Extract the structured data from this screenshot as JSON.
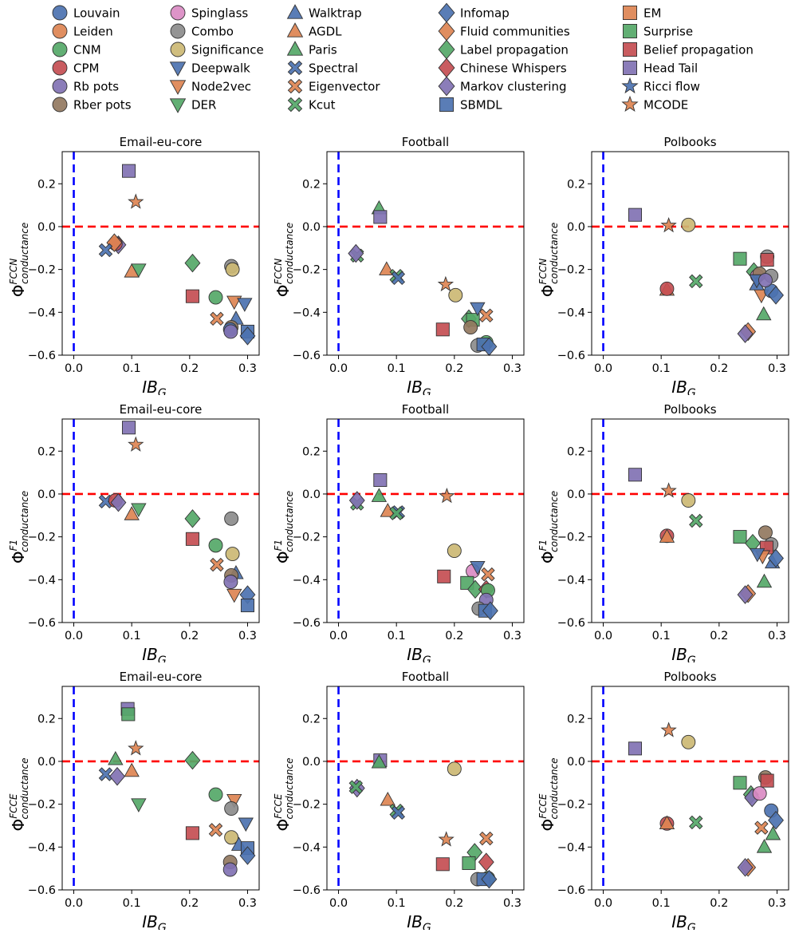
{
  "legend": [
    {
      "name": "Louvain",
      "marker": "circle",
      "color": "#4C72B0"
    },
    {
      "name": "Leiden",
      "marker": "circle",
      "color": "#DD8452"
    },
    {
      "name": "CNM",
      "marker": "circle",
      "color": "#55A868"
    },
    {
      "name": "CPM",
      "marker": "circle",
      "color": "#C44E52"
    },
    {
      "name": "Rb pots",
      "marker": "circle",
      "color": "#8172B3"
    },
    {
      "name": "Rber pots",
      "marker": "circle",
      "color": "#937860"
    },
    {
      "name": "Spinglass",
      "marker": "circle",
      "color": "#DA8BC3"
    },
    {
      "name": "Combo",
      "marker": "circle",
      "color": "#8C8C8C"
    },
    {
      "name": "Significance",
      "marker": "circle",
      "color": "#CCB974"
    },
    {
      "name": "Deepwalk",
      "marker": "triangle-down",
      "color": "#4C72B0"
    },
    {
      "name": "Node2vec",
      "marker": "triangle-down",
      "color": "#DD8452"
    },
    {
      "name": "DER",
      "marker": "triangle-down",
      "color": "#55A868"
    },
    {
      "name": "Walktrap",
      "marker": "triangle-up",
      "color": "#4C72B0"
    },
    {
      "name": "AGDL",
      "marker": "triangle-up",
      "color": "#DD8452"
    },
    {
      "name": "Paris",
      "marker": "triangle-up",
      "color": "#55A868"
    },
    {
      "name": "Spectral",
      "marker": "x",
      "color": "#4C72B0"
    },
    {
      "name": "Eigenvector",
      "marker": "x",
      "color": "#DD8452"
    },
    {
      "name": "Kcut",
      "marker": "x",
      "color": "#55A868"
    },
    {
      "name": "Infomap",
      "marker": "diamond",
      "color": "#4C72B0"
    },
    {
      "name": "Fluid communities",
      "marker": "diamond",
      "color": "#DD8452"
    },
    {
      "name": "Label propagation",
      "marker": "diamond",
      "color": "#55A868"
    },
    {
      "name": "Chinese Whispers",
      "marker": "diamond",
      "color": "#C44E52"
    },
    {
      "name": "Markov clustering",
      "marker": "diamond",
      "color": "#8172B3"
    },
    {
      "name": "SBMDL",
      "marker": "square",
      "color": "#4C72B0"
    },
    {
      "name": "EM",
      "marker": "square",
      "color": "#DD8452"
    },
    {
      "name": "Surprise",
      "marker": "square",
      "color": "#55A868"
    },
    {
      "name": "Belief propagation",
      "marker": "square",
      "color": "#C44E52"
    },
    {
      "name": "Head Tail",
      "marker": "square",
      "color": "#8172B3"
    },
    {
      "name": "Ricci flow",
      "marker": "star",
      "color": "#4C72B0"
    },
    {
      "name": "MCODE",
      "marker": "star",
      "color": "#DD8452"
    }
  ],
  "axes": {
    "xlabel": "IB",
    "xlabel_sub": "G",
    "ylabel_main": "Φ",
    "ylabel_sub": "conductance",
    "xlim": [
      -0.02,
      0.32
    ],
    "ylim": [
      -0.6,
      0.35
    ],
    "xticks": [
      0.0,
      0.1,
      0.2,
      0.3
    ],
    "xtick_labels": [
      "0.0",
      "0.1",
      "0.2",
      "0.3"
    ],
    "yticks": [
      -0.6,
      -0.4,
      -0.2,
      0.0,
      0.2
    ],
    "ytick_labels": [
      "−0.6",
      "−0.4",
      "−0.2",
      "0.0",
      "0.2"
    ],
    "vline_x": 0.0,
    "vline_color": "#0000FF",
    "hline_y": 0.0,
    "hline_color": "#FF0000"
  },
  "chart_data": [
    {
      "type": "scatter",
      "title": "Email-eu-core",
      "ylabel_sup": "FCCN",
      "points": [
        [
          "Head Tail",
          0.095,
          0.26
        ],
        [
          "MCODE",
          0.107,
          0.115
        ],
        [
          "Markov clustering",
          0.077,
          -0.085
        ],
        [
          "CPM",
          0.072,
          -0.08
        ],
        [
          "Fluid communities",
          0.07,
          -0.075
        ],
        [
          "Spectral",
          0.055,
          -0.11
        ],
        [
          "AGDL",
          0.1,
          -0.21
        ],
        [
          "DER",
          0.112,
          -0.2
        ],
        [
          "Label propagation",
          0.205,
          -0.17
        ],
        [
          "Belief propagation",
          0.205,
          -0.325
        ],
        [
          "CNM",
          0.245,
          -0.33
        ],
        [
          "Eigenvector",
          0.247,
          -0.43
        ],
        [
          "Combo",
          0.272,
          -0.185
        ],
        [
          "Significance",
          0.274,
          -0.2
        ],
        [
          "Node2vec",
          0.277,
          -0.35
        ],
        [
          "Deepwalk",
          0.295,
          -0.36
        ],
        [
          "Walktrap",
          0.28,
          -0.43
        ],
        [
          "Rber pots",
          0.272,
          -0.47
        ],
        [
          "Louvain",
          0.27,
          -0.48
        ],
        [
          "Rb pots",
          0.271,
          -0.49
        ],
        [
          "SBMDL",
          0.3,
          -0.49
        ],
        [
          "Infomap",
          0.3,
          -0.51
        ]
      ]
    },
    {
      "type": "scatter",
      "title": "Football",
      "ylabel_sup": "FCCN",
      "points": [
        [
          "Paris",
          0.07,
          0.085
        ],
        [
          "Head Tail",
          0.072,
          0.045
        ],
        [
          "Kcut",
          0.032,
          -0.135
        ],
        [
          "Markov clustering",
          0.03,
          -0.125
        ],
        [
          "AGDL",
          0.083,
          -0.2
        ],
        [
          "Kcut",
          0.1,
          -0.23
        ],
        [
          "Spectral",
          0.103,
          -0.24
        ],
        [
          "MCODE",
          0.185,
          -0.27
        ],
        [
          "Significance",
          0.202,
          -0.32
        ],
        [
          "Belief propagation",
          0.18,
          -0.48
        ],
        [
          "Label propagation",
          0.225,
          -0.43
        ],
        [
          "Surprise",
          0.232,
          -0.435
        ],
        [
          "Deepwalk",
          0.24,
          -0.38
        ],
        [
          "Eigenvector",
          0.255,
          -0.415
        ],
        [
          "Rber pots",
          0.228,
          -0.47
        ],
        [
          "Combo",
          0.24,
          -0.555
        ],
        [
          "CNM",
          0.255,
          -0.54
        ],
        [
          "SBMDL",
          0.25,
          -0.55
        ],
        [
          "Infomap",
          0.26,
          -0.56
        ]
      ]
    },
    {
      "type": "scatter",
      "title": "Polbooks",
      "ylabel_sup": "FCCN",
      "points": [
        [
          "Head Tail",
          0.055,
          0.055
        ],
        [
          "MCODE",
          0.113,
          0.005
        ],
        [
          "Significance",
          0.147,
          0.008
        ],
        [
          "AGDL",
          0.11,
          -0.295
        ],
        [
          "CPM",
          0.11,
          -0.29
        ],
        [
          "Kcut",
          0.16,
          -0.255
        ],
        [
          "Surprise",
          0.236,
          -0.15
        ],
        [
          "Label propagation",
          0.26,
          -0.21
        ],
        [
          "Spinglass",
          0.266,
          -0.23
        ],
        [
          "Rber pots",
          0.27,
          -0.22
        ],
        [
          "Combo",
          0.283,
          -0.14
        ],
        [
          "Belief propagation",
          0.283,
          -0.155
        ],
        [
          "Combo",
          0.29,
          -0.23
        ],
        [
          "Node2vec",
          0.273,
          -0.32
        ],
        [
          "Walktrap",
          0.265,
          -0.27
        ],
        [
          "Deepwalk",
          0.265,
          -0.25
        ],
        [
          "Louvain",
          0.29,
          -0.3
        ],
        [
          "Rb pots",
          0.28,
          -0.25
        ],
        [
          "Paris",
          0.277,
          -0.41
        ],
        [
          "Infomap",
          0.298,
          -0.32
        ],
        [
          "Fluid communities",
          0.25,
          -0.49
        ],
        [
          "Markov clustering",
          0.245,
          -0.5
        ]
      ]
    },
    {
      "type": "scatter",
      "title": "Email-eu-core",
      "ylabel_sup": "F1",
      "points": [
        [
          "Head Tail",
          0.095,
          0.31
        ],
        [
          "MCODE",
          0.107,
          0.23
        ],
        [
          "Spectral",
          0.055,
          -0.035
        ],
        [
          "CPM",
          0.072,
          -0.03
        ],
        [
          "Markov clustering",
          0.077,
          -0.04
        ],
        [
          "AGDL",
          0.1,
          -0.095
        ],
        [
          "DER",
          0.112,
          -0.07
        ],
        [
          "Label propagation",
          0.205,
          -0.115
        ],
        [
          "Belief propagation",
          0.205,
          -0.21
        ],
        [
          "CNM",
          0.245,
          -0.24
        ],
        [
          "Eigenvector",
          0.247,
          -0.33
        ],
        [
          "Combo",
          0.272,
          -0.115
        ],
        [
          "Significance",
          0.274,
          -0.28
        ],
        [
          "Walktrap",
          0.28,
          -0.37
        ],
        [
          "Rber pots",
          0.272,
          -0.38
        ],
        [
          "Rb pots",
          0.271,
          -0.41
        ],
        [
          "Node2vec",
          0.277,
          -0.47
        ],
        [
          "Infomap",
          0.3,
          -0.47
        ],
        [
          "SBMDL",
          0.3,
          -0.52
        ]
      ]
    },
    {
      "type": "scatter",
      "title": "Football",
      "ylabel_sup": "F1",
      "points": [
        [
          "Head Tail",
          0.072,
          0.065
        ],
        [
          "Paris",
          0.07,
          -0.01
        ],
        [
          "MCODE",
          0.187,
          -0.01
        ],
        [
          "Kcut",
          0.032,
          -0.045
        ],
        [
          "Markov clustering",
          0.032,
          -0.03
        ],
        [
          "AGDL",
          0.085,
          -0.08
        ],
        [
          "Spectral",
          0.103,
          -0.085
        ],
        [
          "Kcut",
          0.1,
          -0.09
        ],
        [
          "Significance",
          0.2,
          -0.265
        ],
        [
          "Spinglass",
          0.232,
          -0.36
        ],
        [
          "Deepwalk",
          0.24,
          -0.34
        ],
        [
          "Eigenvector",
          0.258,
          -0.375
        ],
        [
          "Belief propagation",
          0.182,
          -0.385
        ],
        [
          "Surprise",
          0.222,
          -0.415
        ],
        [
          "Label propagation",
          0.236,
          -0.445
        ],
        [
          "Chinese Whispers",
          0.255,
          -0.445
        ],
        [
          "CNM",
          0.258,
          -0.45
        ],
        [
          "Rb pots",
          0.255,
          -0.495
        ],
        [
          "Combo",
          0.242,
          -0.535
        ],
        [
          "SBMDL",
          0.253,
          -0.545
        ],
        [
          "Infomap",
          0.262,
          -0.545
        ]
      ]
    },
    {
      "type": "scatter",
      "title": "Polbooks",
      "ylabel_sup": "F1",
      "points": [
        [
          "Head Tail",
          0.055,
          0.09
        ],
        [
          "MCODE",
          0.113,
          0.015
        ],
        [
          "Significance",
          0.147,
          -0.03
        ],
        [
          "Kcut",
          0.16,
          -0.125
        ],
        [
          "CPM",
          0.11,
          -0.195
        ],
        [
          "AGDL",
          0.11,
          -0.2
        ],
        [
          "Surprise",
          0.236,
          -0.2
        ],
        [
          "Rber pots",
          0.28,
          -0.18
        ],
        [
          "Label propagation",
          0.258,
          -0.23
        ],
        [
          "Combo",
          0.29,
          -0.235
        ],
        [
          "Belief propagation",
          0.282,
          -0.25
        ],
        [
          "Node2vec",
          0.275,
          -0.29
        ],
        [
          "Deepwalk",
          0.266,
          -0.28
        ],
        [
          "Walktrap",
          0.292,
          -0.32
        ],
        [
          "Infomap",
          0.298,
          -0.3
        ],
        [
          "Paris",
          0.278,
          -0.41
        ],
        [
          "Fluid communities",
          0.25,
          -0.465
        ],
        [
          "Markov clustering",
          0.245,
          -0.47
        ]
      ]
    },
    {
      "type": "scatter",
      "title": "Email-eu-core",
      "ylabel_sup": "FCCE",
      "points": [
        [
          "Head Tail",
          0.093,
          0.245
        ],
        [
          "Surprise",
          0.094,
          0.22
        ],
        [
          "MCODE",
          0.107,
          0.06
        ],
        [
          "Paris",
          0.072,
          0.01
        ],
        [
          "Label propagation",
          0.205,
          0.005
        ],
        [
          "Spectral",
          0.055,
          -0.06
        ],
        [
          "Markov clustering",
          0.075,
          -0.07
        ],
        [
          "AGDL",
          0.1,
          -0.045
        ],
        [
          "DER",
          0.112,
          -0.2
        ],
        [
          "Belief propagation",
          0.205,
          -0.335
        ],
        [
          "CNM",
          0.245,
          -0.155
        ],
        [
          "Eigenvector",
          0.245,
          -0.32
        ],
        [
          "Node2vec",
          0.277,
          -0.18
        ],
        [
          "Combo",
          0.272,
          -0.22
        ],
        [
          "Significance",
          0.272,
          -0.355
        ],
        [
          "Deepwalk",
          0.297,
          -0.29
        ],
        [
          "Walktrap",
          0.285,
          -0.39
        ],
        [
          "Rber pots",
          0.27,
          -0.47
        ],
        [
          "Rb pots",
          0.27,
          -0.505
        ],
        [
          "SBMDL",
          0.3,
          -0.405
        ],
        [
          "Infomap",
          0.3,
          -0.44
        ]
      ]
    },
    {
      "type": "scatter",
      "title": "Football",
      "ylabel_sup": "FCCE",
      "points": [
        [
          "Head Tail",
          0.072,
          0.005
        ],
        [
          "Paris",
          0.07,
          -0.005
        ],
        [
          "Significance",
          0.2,
          -0.035
        ],
        [
          "Markov clustering",
          0.032,
          -0.125
        ],
        [
          "Kcut",
          0.03,
          -0.12
        ],
        [
          "AGDL",
          0.085,
          -0.18
        ],
        [
          "Kcut",
          0.1,
          -0.23
        ],
        [
          "Spectral",
          0.103,
          -0.24
        ],
        [
          "MCODE",
          0.186,
          -0.365
        ],
        [
          "Eigenvector",
          0.255,
          -0.36
        ],
        [
          "Label propagation",
          0.235,
          -0.425
        ],
        [
          "Surprise",
          0.225,
          -0.475
        ],
        [
          "Belief propagation",
          0.18,
          -0.48
        ],
        [
          "Chinese Whispers",
          0.255,
          -0.47
        ],
        [
          "Combo",
          0.24,
          -0.55
        ],
        [
          "CNM",
          0.258,
          -0.545
        ],
        [
          "SBMDL",
          0.25,
          -0.55
        ],
        [
          "Infomap",
          0.26,
          -0.55
        ]
      ]
    },
    {
      "type": "scatter",
      "title": "Polbooks",
      "ylabel_sup": "FCCE",
      "points": [
        [
          "MCODE",
          0.113,
          0.145
        ],
        [
          "Significance",
          0.147,
          0.09
        ],
        [
          "Head Tail",
          0.055,
          0.06
        ],
        [
          "CPM",
          0.11,
          -0.29
        ],
        [
          "AGDL",
          0.11,
          -0.29
        ],
        [
          "Kcut",
          0.16,
          -0.285
        ],
        [
          "Surprise",
          0.236,
          -0.1
        ],
        [
          "Rber pots",
          0.28,
          -0.075
        ],
        [
          "Belief propagation",
          0.283,
          -0.09
        ],
        [
          "Label propagation",
          0.255,
          -0.155
        ],
        [
          "Markov clustering",
          0.257,
          -0.17
        ],
        [
          "Spinglass",
          0.27,
          -0.15
        ],
        [
          "Louvain",
          0.29,
          -0.23
        ],
        [
          "Eigenvector",
          0.273,
          -0.31
        ],
        [
          "Paris",
          0.293,
          -0.34
        ],
        [
          "Infomap",
          0.298,
          -0.275
        ],
        [
          "Paris",
          0.278,
          -0.4
        ],
        [
          "Fluid communities",
          0.25,
          -0.495
        ],
        [
          "Markov clustering",
          0.245,
          -0.495
        ]
      ]
    }
  ]
}
